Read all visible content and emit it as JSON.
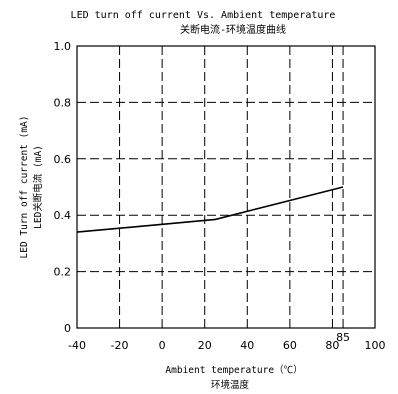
{
  "chart_data": {
    "type": "line",
    "title": "LED turn off current Vs. Ambient temperature",
    "subtitle": "关断电流-环境温度曲线",
    "xlabel": "Ambient temperature（℃）",
    "xlabel_cn": "环境温度",
    "ylabel": "LED Turn off current (mA)",
    "ylabel_cn": "LED关断电流 (mA)",
    "xlim": [
      -40,
      100
    ],
    "ylim": [
      0,
      1.0
    ],
    "x_ticks": [
      "-40",
      "-20",
      "0",
      "20",
      "40",
      "60",
      "80",
      "100"
    ],
    "y_ticks": [
      "0",
      "0.2",
      "0.4",
      "0.6",
      "0.8",
      "1.0"
    ],
    "annotations": [
      {
        "text": "85",
        "x": 85
      }
    ],
    "grid": true,
    "series": [
      {
        "x": [
          -40,
          25,
          85
        ],
        "y": [
          0.34,
          0.385,
          0.5
        ]
      }
    ]
  }
}
